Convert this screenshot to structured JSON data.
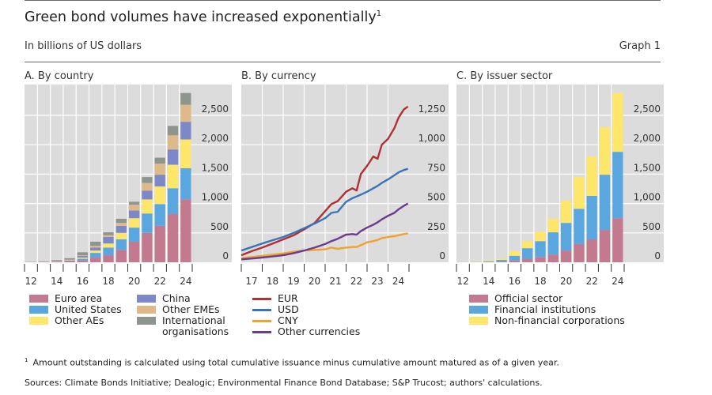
{
  "header": {
    "title": "Green bond volumes have increased exponentially",
    "title_footnote_marker": "1",
    "subtitle": "In billions of US dollars",
    "graph_number": "Graph 1"
  },
  "footer": {
    "footnote_marker": "1",
    "footnote": "Amount outstanding is calculated using total cumulative issuance minus cumulative amount matured as of a given year.",
    "sources": "Sources: Climate Bonds Initiative; Dealogic; Environmental Finance Bond Database; S&P Trucost; authors' calculations."
  },
  "chart_data": [
    {
      "id": "panel-a",
      "type": "bar",
      "stacked": true,
      "title": "A. By country",
      "xlabel": "",
      "ylabel": "",
      "ylim": [
        0,
        2900
      ],
      "y_ticks": [
        0,
        500,
        1000,
        1500,
        2000,
        2500
      ],
      "y_tick_labels": [
        "0",
        "500",
        "1,000",
        "1,500",
        "2,000",
        "2,500"
      ],
      "y_axis_side": "right",
      "grid": true,
      "categories": [
        "2012",
        "2013",
        "2014",
        "2015",
        "2016",
        "2017",
        "2018",
        "2019",
        "2020",
        "2021",
        "2022",
        "2023",
        "2024"
      ],
      "x_tick_labels": [
        "12",
        "",
        "14",
        "",
        "16",
        "",
        "18",
        "",
        "20",
        "",
        "22",
        "",
        "24"
      ],
      "series": [
        {
          "name": "Euro area",
          "color": "#c47a8e",
          "values": [
            3,
            6,
            12,
            20,
            30,
            80,
            120,
            210,
            350,
            500,
            620,
            820,
            1070
          ]
        },
        {
          "name": "United States",
          "color": "#5aa7e0",
          "values": [
            1,
            2,
            5,
            10,
            30,
            80,
            130,
            180,
            240,
            330,
            370,
            440,
            530
          ]
        },
        {
          "name": "Other AEs",
          "color": "#fde66a",
          "values": [
            1,
            2,
            6,
            8,
            20,
            40,
            70,
            110,
            160,
            240,
            300,
            400,
            490
          ]
        },
        {
          "name": "China",
          "color": "#7c88c8",
          "values": [
            0,
            1,
            4,
            10,
            30,
            50,
            110,
            120,
            130,
            150,
            200,
            260,
            300
          ]
        },
        {
          "name": "Other EMEs",
          "color": "#deba8a",
          "values": [
            0,
            1,
            3,
            6,
            10,
            30,
            30,
            50,
            100,
            130,
            190,
            240,
            290
          ]
        },
        {
          "name": "International organisations",
          "color": "#8e958e",
          "values": [
            3,
            4,
            10,
            16,
            50,
            70,
            50,
            70,
            50,
            100,
            100,
            160,
            200
          ]
        }
      ],
      "legend": {
        "placement": "bottom",
        "columns": 2
      }
    },
    {
      "id": "panel-b",
      "type": "line",
      "title": "B. By currency",
      "xlabel": "",
      "ylabel": "",
      "xlim": [
        2017,
        2025
      ],
      "ylim": [
        0,
        1350
      ],
      "y_ticks": [
        0,
        250,
        500,
        750,
        1000,
        1250
      ],
      "y_tick_labels": [
        "0",
        "250",
        "500",
        "750",
        "1,000",
        "1,250"
      ],
      "y_axis_side": "right",
      "grid": true,
      "x_ticks": [
        2017,
        2018,
        2019,
        2020,
        2021,
        2022,
        2023,
        2024,
        2025
      ],
      "x_tick_labels": [
        "17",
        "18",
        "19",
        "20",
        "21",
        "22",
        "23",
        "24",
        ""
      ],
      "x": [
        2017.0,
        2017.5,
        2018.0,
        2018.5,
        2019.0,
        2019.5,
        2020.0,
        2020.5,
        2021.0,
        2021.3,
        2021.6,
        2022.0,
        2022.3,
        2022.5,
        2022.7,
        2023.0,
        2023.3,
        2023.5,
        2023.7,
        2024.0,
        2024.3,
        2024.5,
        2024.75,
        2024.95
      ],
      "series": [
        {
          "name": "EUR",
          "color": "#b22f34",
          "values": [
            60,
            95,
            125,
            160,
            195,
            230,
            280,
            335,
            435,
            495,
            520,
            600,
            630,
            610,
            750,
            820,
            900,
            880,
            1000,
            1050,
            1140,
            1230,
            1300,
            1325
          ]
        },
        {
          "name": "USD",
          "color": "#3a74b8",
          "values": [
            100,
            130,
            160,
            188,
            215,
            250,
            290,
            330,
            375,
            420,
            430,
            515,
            545,
            560,
            575,
            600,
            630,
            650,
            675,
            705,
            740,
            765,
            785,
            795
          ]
        },
        {
          "name": "CNY",
          "color": "#f0a22e",
          "values": [
            35,
            45,
            55,
            65,
            75,
            90,
            100,
            105,
            110,
            125,
            115,
            125,
            130,
            130,
            145,
            170,
            180,
            190,
            205,
            215,
            222,
            230,
            240,
            245
          ]
        },
        {
          "name": "Other currencies",
          "color": "#6b3b8f",
          "values": [
            25,
            32,
            40,
            50,
            60,
            78,
            100,
            125,
            155,
            180,
            200,
            235,
            240,
            235,
            265,
            295,
            320,
            340,
            365,
            395,
            420,
            450,
            480,
            500
          ]
        }
      ],
      "legend": {
        "placement": "bottom",
        "columns": 1
      }
    },
    {
      "id": "panel-c",
      "type": "bar",
      "stacked": true,
      "title": "C. By issuer sector",
      "xlabel": "",
      "ylabel": "",
      "ylim": [
        0,
        2900
      ],
      "y_ticks": [
        0,
        500,
        1000,
        1500,
        2000,
        2500
      ],
      "y_tick_labels": [
        "0",
        "500",
        "1,000",
        "1,500",
        "2,000",
        "2,500"
      ],
      "y_axis_side": "right",
      "grid": true,
      "categories": [
        "2012",
        "2013",
        "2014",
        "2015",
        "2016",
        "2017",
        "2018",
        "2019",
        "2020",
        "2021",
        "2022",
        "2023",
        "2024"
      ],
      "x_tick_labels": [
        "12",
        "",
        "14",
        "",
        "16",
        "",
        "18",
        "",
        "20",
        "",
        "22",
        "",
        "24"
      ],
      "series": [
        {
          "name": "Official sector",
          "color": "#c47a8e",
          "values": [
            1,
            2,
            5,
            12,
            30,
            60,
            90,
            130,
            200,
            310,
            390,
            550,
            750
          ]
        },
        {
          "name": "Financial institutions",
          "color": "#5aa7e0",
          "values": [
            1,
            3,
            12,
            28,
            80,
            180,
            270,
            380,
            470,
            600,
            740,
            940,
            1130
          ]
        },
        {
          "name": "Non-financial corporations",
          "color": "#fde66a",
          "values": [
            2,
            5,
            15,
            25,
            80,
            120,
            160,
            230,
            380,
            540,
            670,
            810,
            1000
          ]
        }
      ],
      "legend": {
        "placement": "bottom",
        "columns": 1
      }
    }
  ]
}
